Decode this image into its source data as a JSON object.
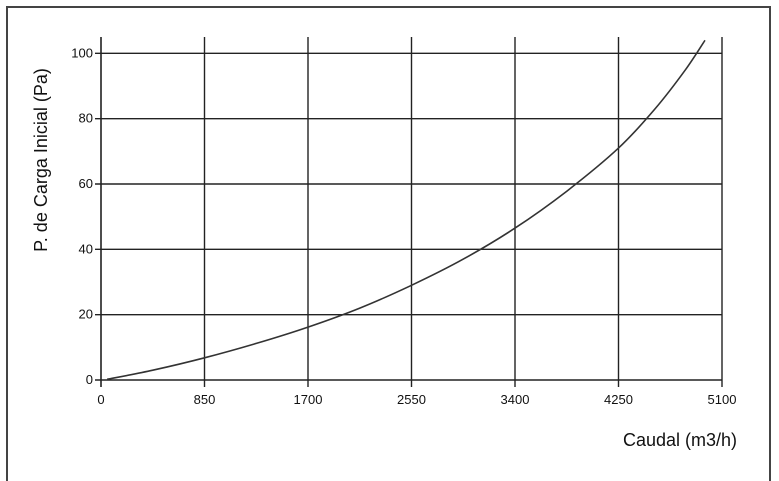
{
  "chart_data": {
    "type": "line",
    "title": "",
    "xlabel": "Caudal (m3/h)",
    "ylabel": "P. de Carga Inicial (Pa)",
    "xlim": [
      0,
      5100
    ],
    "ylim": [
      0,
      105
    ],
    "x_ticks": [
      0,
      850,
      1700,
      2550,
      3400,
      4250,
      5100
    ],
    "y_ticks": [
      0,
      20,
      40,
      60,
      80,
      100
    ],
    "grid": true,
    "series": [
      {
        "color": "#333333",
        "x": [
          50,
          425,
          850,
          1275,
          1700,
          2125,
          2550,
          2975,
          3400,
          3825,
          4250,
          4550,
          4800,
          4960
        ],
        "y": [
          0.2,
          3.0,
          6.8,
          11.2,
          16.2,
          22.0,
          29.0,
          37.0,
          46.5,
          57.8,
          71.0,
          83.0,
          95.0,
          104.0
        ]
      }
    ]
  }
}
